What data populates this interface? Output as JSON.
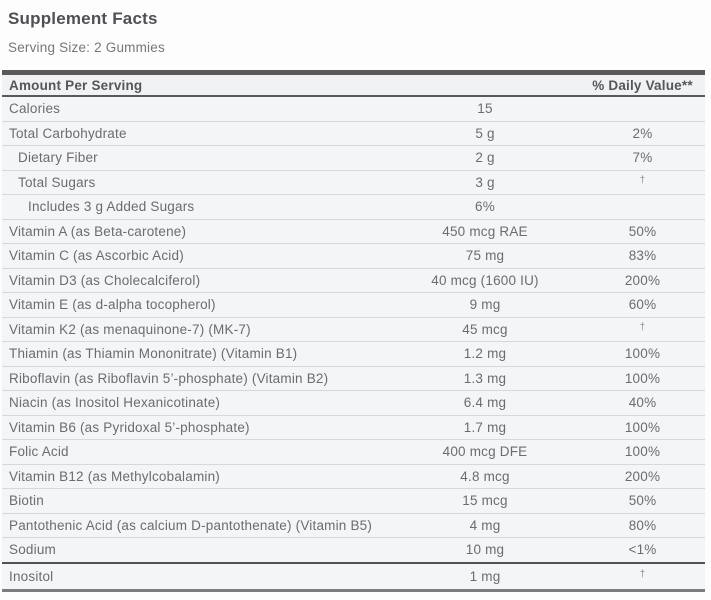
{
  "title": "Supplement Facts",
  "serving_size": "Serving Size: 2 Gummies",
  "header": {
    "amount_label": "Amount Per Serving",
    "dv_label": "% Daily Value**"
  },
  "rows": [
    {
      "name": "Calories",
      "amount": "15",
      "dv": "",
      "indent": 0
    },
    {
      "name": "Total Carbohydrate",
      "amount": "5 g",
      "dv": "2%",
      "indent": 0
    },
    {
      "name": "Dietary Fiber",
      "amount": "2 g",
      "dv": "7%",
      "indent": 1
    },
    {
      "name": "Total Sugars",
      "amount": "3 g",
      "dv": "†",
      "indent": 1
    },
    {
      "name": "Includes 3 g Added Sugars",
      "amount": "6%",
      "dv": "",
      "indent": 2
    },
    {
      "name": "Vitamin A (as Beta-carotene)",
      "amount": "450 mcg RAE",
      "dv": "50%",
      "indent": 0
    },
    {
      "name": "Vitamin C (as Ascorbic Acid)",
      "amount": "75 mg",
      "dv": "83%",
      "indent": 0
    },
    {
      "name": "Vitamin D3 (as Cholecalciferol)",
      "amount": "40 mcg (1600 IU)",
      "dv": "200%",
      "indent": 0
    },
    {
      "name": "Vitamin E (as d-alpha tocopherol)",
      "amount": "9 mg",
      "dv": "60%",
      "indent": 0
    },
    {
      "name": "Vitamin K2 (as menaquinone-7) (MK-7)",
      "amount": "45 mcg",
      "dv": "†",
      "indent": 0
    },
    {
      "name": "Thiamin (as Thiamin Mononitrate) (Vitamin B1)",
      "amount": "1.2 mg",
      "dv": "100%",
      "indent": 0
    },
    {
      "name": "Riboflavin (as Riboflavin 5’-phosphate) (Vitamin B2)",
      "amount": "1.3 mg",
      "dv": "100%",
      "indent": 0
    },
    {
      "name": "Niacin (as Inositol Hexanicotinate)",
      "amount": "6.4 mg",
      "dv": "40%",
      "indent": 0
    },
    {
      "name": "Vitamin B6 (as Pyridoxal 5’-phosphate)",
      "amount": "1.7 mg",
      "dv": "100%",
      "indent": 0
    },
    {
      "name": "Folic Acid",
      "amount": "400 mcg DFE",
      "dv": "100%",
      "indent": 0
    },
    {
      "name": "Vitamin B12 (as Methylcobalamin)",
      "amount": "4.8 mcg",
      "dv": "200%",
      "indent": 0
    },
    {
      "name": "Biotin",
      "amount": "15 mcg",
      "dv": "50%",
      "indent": 0
    },
    {
      "name": "Pantothenic Acid (as calcium D-pantothenate) (Vitamin B5)",
      "amount": "4 mg",
      "dv": "80%",
      "indent": 0
    },
    {
      "name": "Sodium",
      "amount": "10 mg",
      "dv": "<1%",
      "indent": 0
    }
  ],
  "footer_rows": [
    {
      "name": "Inositol",
      "amount": "1 mg",
      "dv": "†",
      "indent": 0
    }
  ],
  "colors": {
    "bar": "#58595b",
    "row-bg": "#f4f5f7",
    "row-text": "#6b6c70",
    "separator": "#d6d8db",
    "divider": "#515256",
    "bottom-bar": "#7b7c80"
  }
}
